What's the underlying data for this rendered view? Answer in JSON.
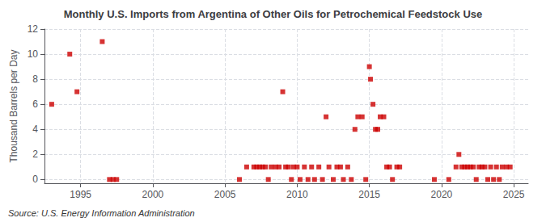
{
  "chart_data": {
    "type": "scatter",
    "title": "Monthly U.S. Imports from Argentina of Other Oils for Petrochemical Feedstock Use",
    "ylabel": "Thousand Barrels per Day",
    "annotation": "Source: U.S. Energy Information Administration",
    "color": "#cc0000",
    "marker": "square",
    "grid": true,
    "xlim": [
      1992.5,
      2026
    ],
    "ylim": [
      -0.3,
      12
    ],
    "xticks": [
      1995,
      2000,
      2005,
      2010,
      2015,
      2020,
      2025
    ],
    "yticks": [
      0,
      2,
      4,
      6,
      8,
      10,
      12
    ],
    "x": [
      1993.0,
      1994.25,
      1994.75,
      1996.5,
      1997.0,
      1997.25,
      1997.5,
      2006.0,
      2006.5,
      2007.0,
      2007.2,
      2007.4,
      2007.6,
      2007.8,
      2008.0,
      2008.2,
      2008.5,
      2008.75,
      2009.0,
      2009.2,
      2009.4,
      2009.6,
      2009.75,
      2010.0,
      2010.2,
      2010.5,
      2010.75,
      2011.0,
      2011.2,
      2011.5,
      2011.75,
      2012.0,
      2012.2,
      2012.5,
      2012.75,
      2013.0,
      2013.2,
      2013.5,
      2013.75,
      2014.0,
      2014.2,
      2014.5,
      2014.75,
      2015.0,
      2015.08,
      2015.25,
      2015.42,
      2015.58,
      2015.75,
      2016.0,
      2016.2,
      2016.4,
      2016.6,
      2016.9,
      2017.1,
      2019.5,
      2020.5,
      2021.0,
      2021.2,
      2021.4,
      2021.6,
      2021.8,
      2022.0,
      2022.2,
      2022.4,
      2022.6,
      2022.8,
      2023.0,
      2023.2,
      2023.4,
      2023.6,
      2023.8,
      2024.0,
      2024.2,
      2024.5,
      2024.75
    ],
    "values": [
      6.0,
      10.0,
      7.0,
      11.0,
      0.0,
      0.0,
      0.0,
      0.0,
      1.0,
      1.0,
      1.0,
      1.0,
      1.0,
      1.0,
      0.0,
      1.0,
      1.0,
      1.0,
      7.0,
      1.0,
      1.0,
      0.0,
      1.0,
      1.0,
      0.0,
      1.0,
      0.0,
      1.0,
      0.0,
      1.0,
      0.0,
      5.0,
      1.0,
      0.0,
      1.0,
      1.0,
      0.0,
      1.0,
      0.0,
      4.0,
      5.0,
      5.0,
      0.0,
      9.0,
      8.0,
      6.0,
      4.0,
      4.0,
      5.0,
      5.0,
      1.0,
      1.0,
      0.0,
      1.0,
      1.0,
      0.0,
      0.0,
      1.0,
      2.0,
      1.0,
      1.0,
      1.0,
      1.0,
      1.0,
      0.0,
      1.0,
      1.0,
      1.0,
      0.0,
      1.0,
      0.0,
      1.0,
      0.0,
      1.0,
      1.0,
      1.0
    ]
  }
}
